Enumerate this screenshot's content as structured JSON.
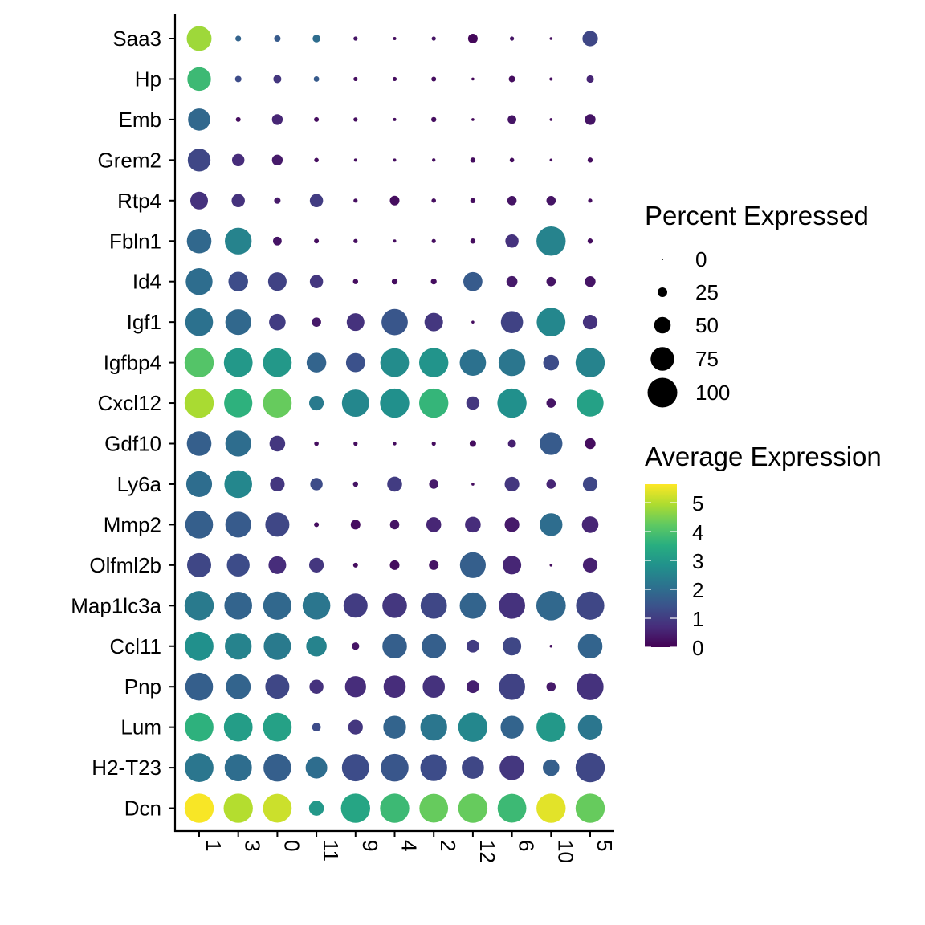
{
  "chart_data": {
    "type": "scatter",
    "subtype": "dot-plot",
    "title": "",
    "xlabel": "",
    "ylabel": "",
    "x_categories": [
      "1",
      "3",
      "0",
      "11",
      "9",
      "4",
      "2",
      "12",
      "6",
      "10",
      "5"
    ],
    "y_categories": [
      "Saa3",
      "Hp",
      "Emb",
      "Grem2",
      "Rtp4",
      "Fbln1",
      "Id4",
      "Igf1",
      "Igfbp4",
      "Cxcl12",
      "Gdf10",
      "Ly6a",
      "Mmp2",
      "Olfml2b",
      "Map1lc3a",
      "Ccl11",
      "Pnp",
      "Lum",
      "H2-T23",
      "Dcn"
    ],
    "percent_expressed": [
      [
        80,
        13,
        15,
        19,
        8,
        5,
        8,
        25,
        8,
        4,
        46
      ],
      [
        75,
        15,
        20,
        12,
        8,
        8,
        10,
        4,
        15,
        5,
        18
      ],
      [
        70,
        10,
        29,
        10,
        8,
        5,
        11,
        4,
        22,
        4,
        29
      ],
      [
        72,
        35,
        29,
        9,
        5,
        5,
        6,
        11,
        9,
        4,
        11
      ],
      [
        54,
        38,
        15,
        38,
        8,
        25,
        9,
        11,
        24,
        24,
        8
      ],
      [
        79,
        88,
        22,
        10,
        8,
        5,
        8,
        11,
        38,
        98,
        11
      ],
      [
        88,
        61,
        57,
        38,
        11,
        13,
        13,
        59,
        30,
        24,
        29
      ],
      [
        92,
        84,
        50,
        24,
        54,
        86,
        57,
        4,
        70,
        96,
        43
      ],
      [
        98,
        96,
        96,
        61,
        59,
        96,
        98,
        86,
        88,
        47,
        98
      ],
      [
        98,
        94,
        96,
        43,
        90,
        98,
        98,
        38,
        98,
        24,
        88
      ],
      [
        79,
        84,
        47,
        9,
        8,
        6,
        8,
        15,
        20,
        72,
        29
      ],
      [
        84,
        92,
        43,
        35,
        11,
        44,
        24,
        4,
        43,
        24,
        43
      ],
      [
        92,
        84,
        77,
        10,
        25,
        24,
        44,
        47,
        43,
        72,
        50
      ],
      [
        77,
        72,
        54,
        43,
        10,
        25,
        25,
        84,
        57,
        4,
        43
      ],
      [
        98,
        92,
        94,
        92,
        77,
        79,
        86,
        86,
        86,
        99,
        94
      ],
      [
        96,
        88,
        90,
        64,
        18,
        79,
        77,
        36,
        57,
        4,
        79
      ],
      [
        92,
        80,
        77,
        41,
        66,
        70,
        70,
        36,
        86,
        24,
        88
      ],
      [
        96,
        96,
        96,
        22,
        43,
        72,
        88,
        98,
        72,
        98,
        79
      ],
      [
        96,
        90,
        92,
        68,
        90,
        92,
        88,
        70,
        80,
        50,
        98
      ],
      [
        98,
        98,
        96,
        44,
        98,
        98,
        96,
        98,
        96,
        98,
        98
      ]
    ],
    "average_expression": [
      [
        4.8,
        1.8,
        1.6,
        2.0,
        0.3,
        0.2,
        0.3,
        0.1,
        0.3,
        0.2,
        1.2
      ],
      [
        3.8,
        1.3,
        0.9,
        1.6,
        0.2,
        0.2,
        0.2,
        0.1,
        0.2,
        0.2,
        0.6
      ],
      [
        1.9,
        0.2,
        0.6,
        0.2,
        0.2,
        0.2,
        0.2,
        0.1,
        0.3,
        0.2,
        0.3
      ],
      [
        1.2,
        0.7,
        0.4,
        0.2,
        0.2,
        0.2,
        0.2,
        0.2,
        0.2,
        0.2,
        0.2
      ],
      [
        0.8,
        0.8,
        0.4,
        1.0,
        0.2,
        0.2,
        0.2,
        0.2,
        0.3,
        0.3,
        0.2
      ],
      [
        1.9,
        2.5,
        0.3,
        0.2,
        0.2,
        0.2,
        0.2,
        0.2,
        0.8,
        2.5,
        0.2
      ],
      [
        2.0,
        1.3,
        1.1,
        0.9,
        0.2,
        0.2,
        0.2,
        1.6,
        0.4,
        0.3,
        0.3
      ],
      [
        2.1,
        1.9,
        1.0,
        0.4,
        0.8,
        1.5,
        0.9,
        0.2,
        1.1,
        2.6,
        0.8
      ],
      [
        4.1,
        3.0,
        3.0,
        1.8,
        1.4,
        2.7,
        2.9,
        2.1,
        2.2,
        1.3,
        2.5
      ],
      [
        4.9,
        3.6,
        4.3,
        2.3,
        2.6,
        2.8,
        3.7,
        0.9,
        2.8,
        0.3,
        3.2
      ],
      [
        1.7,
        2.0,
        0.9,
        0.2,
        0.2,
        0.2,
        0.2,
        0.2,
        0.5,
        1.6,
        0.2
      ],
      [
        2.0,
        2.6,
        0.9,
        1.3,
        0.3,
        1.0,
        0.4,
        0.2,
        0.9,
        0.6,
        1.2
      ],
      [
        1.7,
        1.6,
        1.2,
        0.2,
        0.2,
        0.3,
        0.6,
        0.7,
        0.4,
        2.0,
        0.6
      ],
      [
        1.2,
        1.3,
        0.7,
        0.9,
        0.2,
        0.2,
        0.3,
        1.7,
        0.6,
        0.2,
        0.5
      ],
      [
        2.3,
        1.8,
        1.9,
        2.2,
        1.0,
        0.9,
        1.2,
        1.8,
        0.8,
        1.9,
        1.2
      ],
      [
        2.8,
        2.5,
        2.3,
        2.5,
        0.3,
        1.7,
        1.7,
        1.0,
        1.2,
        0.2,
        1.8
      ],
      [
        1.7,
        1.8,
        1.2,
        0.8,
        0.7,
        0.7,
        0.8,
        0.5,
        1.1,
        0.4,
        0.8
      ],
      [
        3.6,
        3.1,
        3.2,
        1.3,
        0.9,
        1.8,
        2.2,
        2.6,
        1.8,
        3.0,
        2.2
      ],
      [
        2.2,
        2.0,
        1.7,
        2.0,
        1.3,
        1.5,
        1.3,
        1.2,
        0.9,
        1.7,
        1.2
      ],
      [
        5.6,
        5.0,
        5.2,
        3.0,
        3.3,
        3.8,
        4.3,
        4.3,
        3.8,
        5.4,
        4.3
      ]
    ],
    "color_scale": {
      "name": "viridis",
      "range": [
        0,
        5.64
      ],
      "low": "#440154",
      "high": "#fde725"
    },
    "size_legend": {
      "title": "Percent Expressed",
      "breaks": [
        "0",
        "25",
        "50",
        "75",
        "100"
      ]
    },
    "color_legend": {
      "title": "Average Expression",
      "breaks": [
        "0",
        "1",
        "2",
        "3",
        "4",
        "5"
      ]
    },
    "grid": false,
    "legend_placement": "right"
  }
}
